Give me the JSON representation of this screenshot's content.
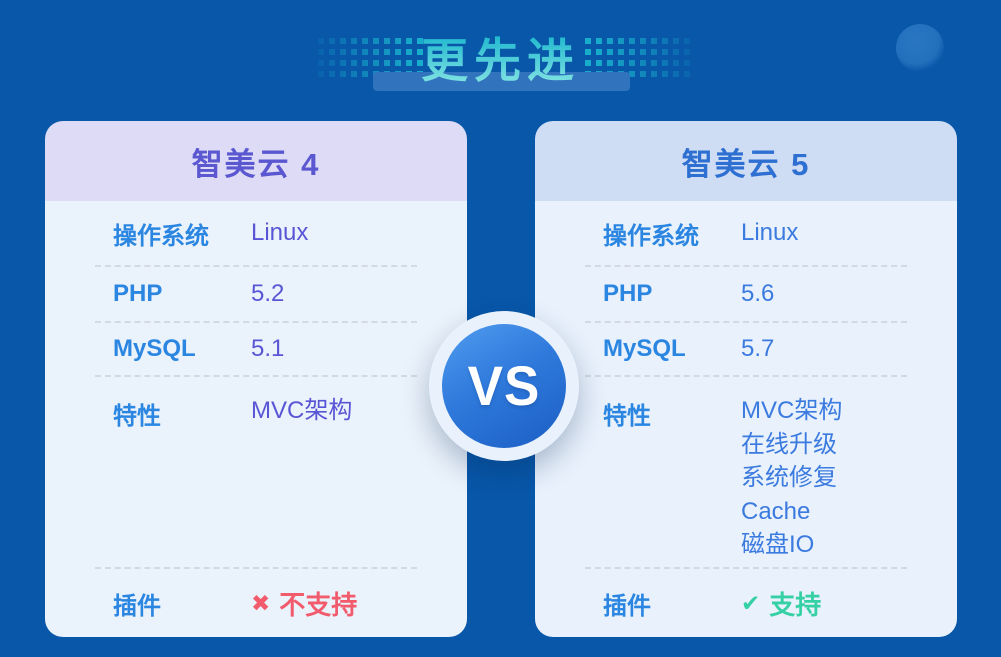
{
  "title": {
    "text": "更先进"
  },
  "vs_badge": {
    "text": "VS"
  },
  "cards": [
    {
      "id": "zhimeiyun-4",
      "title": "智美云 4",
      "rows": [
        {
          "label": "操作系统",
          "values": [
            "Linux"
          ]
        },
        {
          "label": "PHP",
          "values": [
            "5.2"
          ]
        },
        {
          "label": "MySQL",
          "values": [
            "5.1"
          ]
        },
        {
          "label": "特性",
          "values": [
            "MVC架构"
          ]
        }
      ],
      "plugin": {
        "label": "插件",
        "icon": "✖",
        "status": "不支持",
        "supported": false
      }
    },
    {
      "id": "zhimeiyun-5",
      "title": "智美云 5",
      "rows": [
        {
          "label": "操作系统",
          "values": [
            "Linux"
          ]
        },
        {
          "label": "PHP",
          "values": [
            "5.6"
          ]
        },
        {
          "label": "MySQL",
          "values": [
            "5.7"
          ]
        },
        {
          "label": "特性",
          "values": [
            "MVC架构",
            "在线升级",
            "系统修复",
            "Cache",
            "磁盘IO"
          ]
        }
      ],
      "plugin": {
        "label": "插件",
        "icon": "✔",
        "status": "支持",
        "supported": true
      }
    }
  ],
  "colors": {
    "background": "#0857A9",
    "title_gradient_top": "#10B2CC",
    "title_gradient_bottom": "#8AE6E4",
    "title_underline": "#3273BD",
    "dots_teal": "#18AECB",
    "label_blue": "#2B86E2",
    "card_left_header_bg": "#DDDBF5",
    "card_left_accent": "#5A57D1",
    "card_left_value": "#5956D6",
    "card_left_body_bg": "#EAF2FB",
    "card_right_header_bg": "#CEDCF4",
    "card_right_accent": "#2E6FD2",
    "card_right_value": "#3B7ADF",
    "card_right_body_bg": "#E8F1FC",
    "unsupported_red": "#F15B6C",
    "supported_green": "#35D0A4",
    "vs_ring": "#E9F2FC",
    "vs_circle_top": "#519CEF",
    "vs_circle_bottom": "#1C5EC4"
  }
}
